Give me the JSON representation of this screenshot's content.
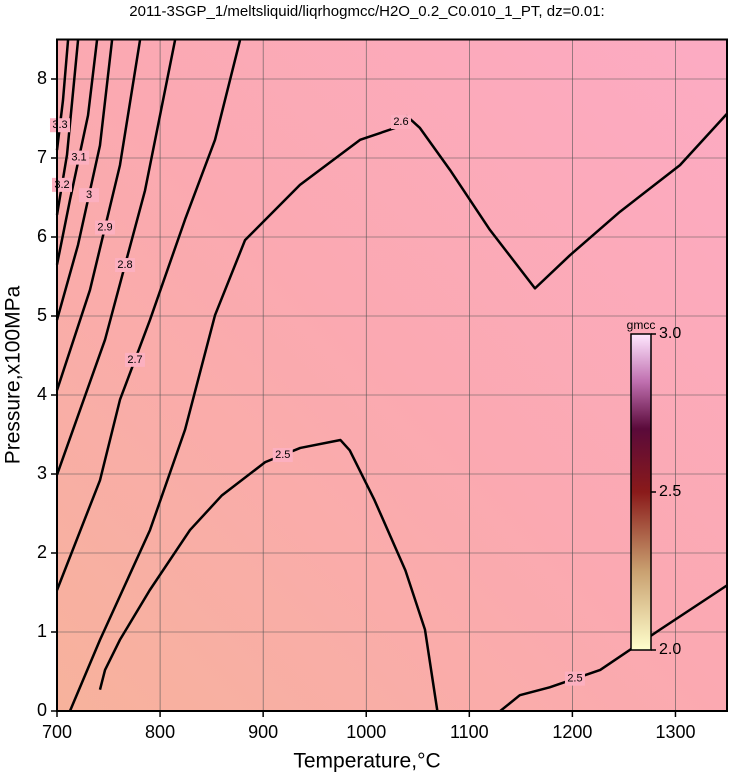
{
  "chart_data": {
    "type": "contour",
    "title": "2011-3SGP_1/meltsliquid/liqrhogmcc/H2O_0.2_C0.010_1_PT, dz=0.01:",
    "x_label": "Temperature,°C",
    "y_label": "Pressure,x100MPa",
    "xlim": [
      700,
      1350
    ],
    "ylim": [
      0,
      8.5
    ],
    "xticks": [
      700,
      800,
      900,
      1000,
      1100,
      1200,
      1300
    ],
    "yticks": [
      0,
      1,
      2,
      3,
      4,
      5,
      6,
      7,
      8
    ],
    "grid": true,
    "color": "#000000",
    "series": [
      {
        "name": "2.5",
        "x": [
          741.7,
          746.6,
          761,
          790,
          829,
          860,
          902,
          936,
          975,
          984,
          1008,
          1038,
          1057,
          1069
        ],
        "values": [
          0.27,
          0.52,
          0.9,
          1.53,
          2.29,
          2.73,
          3.15,
          3.33,
          3.43,
          3.3,
          2.67,
          1.78,
          1.03,
          0
        ]
      },
      {
        "name": "2.5",
        "x": [
          1130,
          1149,
          1178,
          1227,
          1285,
          1350
        ],
        "values": [
          0,
          0.2,
          0.3,
          0.52,
          1.03,
          1.59
        ]
      },
      {
        "name": "2.6",
        "x": [
          712.6,
          741.7,
          790.2,
          824.2,
          853.3,
          882.4,
          935.7,
          994,
          1027.9,
          1039.5,
          1052.1,
          1081.2,
          1120,
          1163.7,
          1197.7,
          1246.2,
          1304.4,
          1350
        ],
        "values": [
          0,
          0.9,
          2.29,
          3.56,
          5.01,
          5.96,
          6.66,
          7.23,
          7.38,
          7.53,
          7.38,
          6.85,
          6.09,
          5.35,
          5.77,
          6.32,
          6.91,
          7.56
        ]
      },
      {
        "name": "2.7",
        "x": [
          700,
          741.7,
          761.1,
          790.2,
          824.2,
          853.3,
          877.5
        ],
        "values": [
          1.53,
          2.92,
          3.94,
          4.95,
          6.22,
          7.23,
          8.49
        ]
      },
      {
        "name": "2.8",
        "x": [
          700,
          746.6,
          785.4,
          814.5
        ],
        "values": [
          2.99,
          4.7,
          6.59,
          8.49
        ]
      },
      {
        "name": "2.9",
        "x": [
          700,
          732,
          761.1,
          780.5
        ],
        "values": [
          4.06,
          5.33,
          6.91,
          8.49
        ]
      },
      {
        "name": "3",
        "x": [
          700,
          720.4,
          741.7,
          753.4
        ],
        "values": [
          4.95,
          5.9,
          7.16,
          8.49
        ]
      },
      {
        "name": "3.1",
        "x": [
          700,
          712.6,
          730.1,
          738.8
        ],
        "values": [
          5.65,
          6.47,
          7.54,
          8.49
        ]
      },
      {
        "name": "3.2",
        "x": [
          700,
          709.7,
          720.4
        ],
        "values": [
          6.28,
          7.04,
          8.49
        ]
      },
      {
        "name": "3.3",
        "x": [
          700,
          705.8,
          710.7
        ],
        "values": [
          7.1,
          7.73,
          8.49
        ]
      }
    ],
    "colorbar": {
      "label": "gmcc",
      "lim": [
        2,
        3
      ],
      "ticks": [
        {
          "value": 3,
          "label": "3.0"
        },
        {
          "value": 2.5,
          "label": "2.5"
        },
        {
          "value": 2,
          "label": "2.0"
        }
      ]
    }
  }
}
